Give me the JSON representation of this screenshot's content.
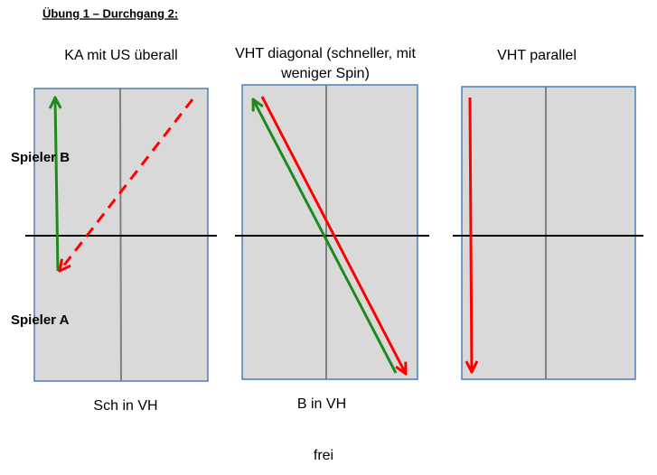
{
  "header": {
    "title": "Übung 1 – Durchgang 2:"
  },
  "players": {
    "top": "Spieler B",
    "bottom": "Spieler A"
  },
  "panels": [
    {
      "title": [
        "KA mit US überall"
      ],
      "caption": "Sch in VH"
    },
    {
      "title": [
        "VHT diagonal (schneller, mit",
        "weniger Spin)"
      ],
      "caption": "B in VH"
    },
    {
      "title": [
        "VHT parallel"
      ]
    }
  ],
  "footer": "frei"
}
